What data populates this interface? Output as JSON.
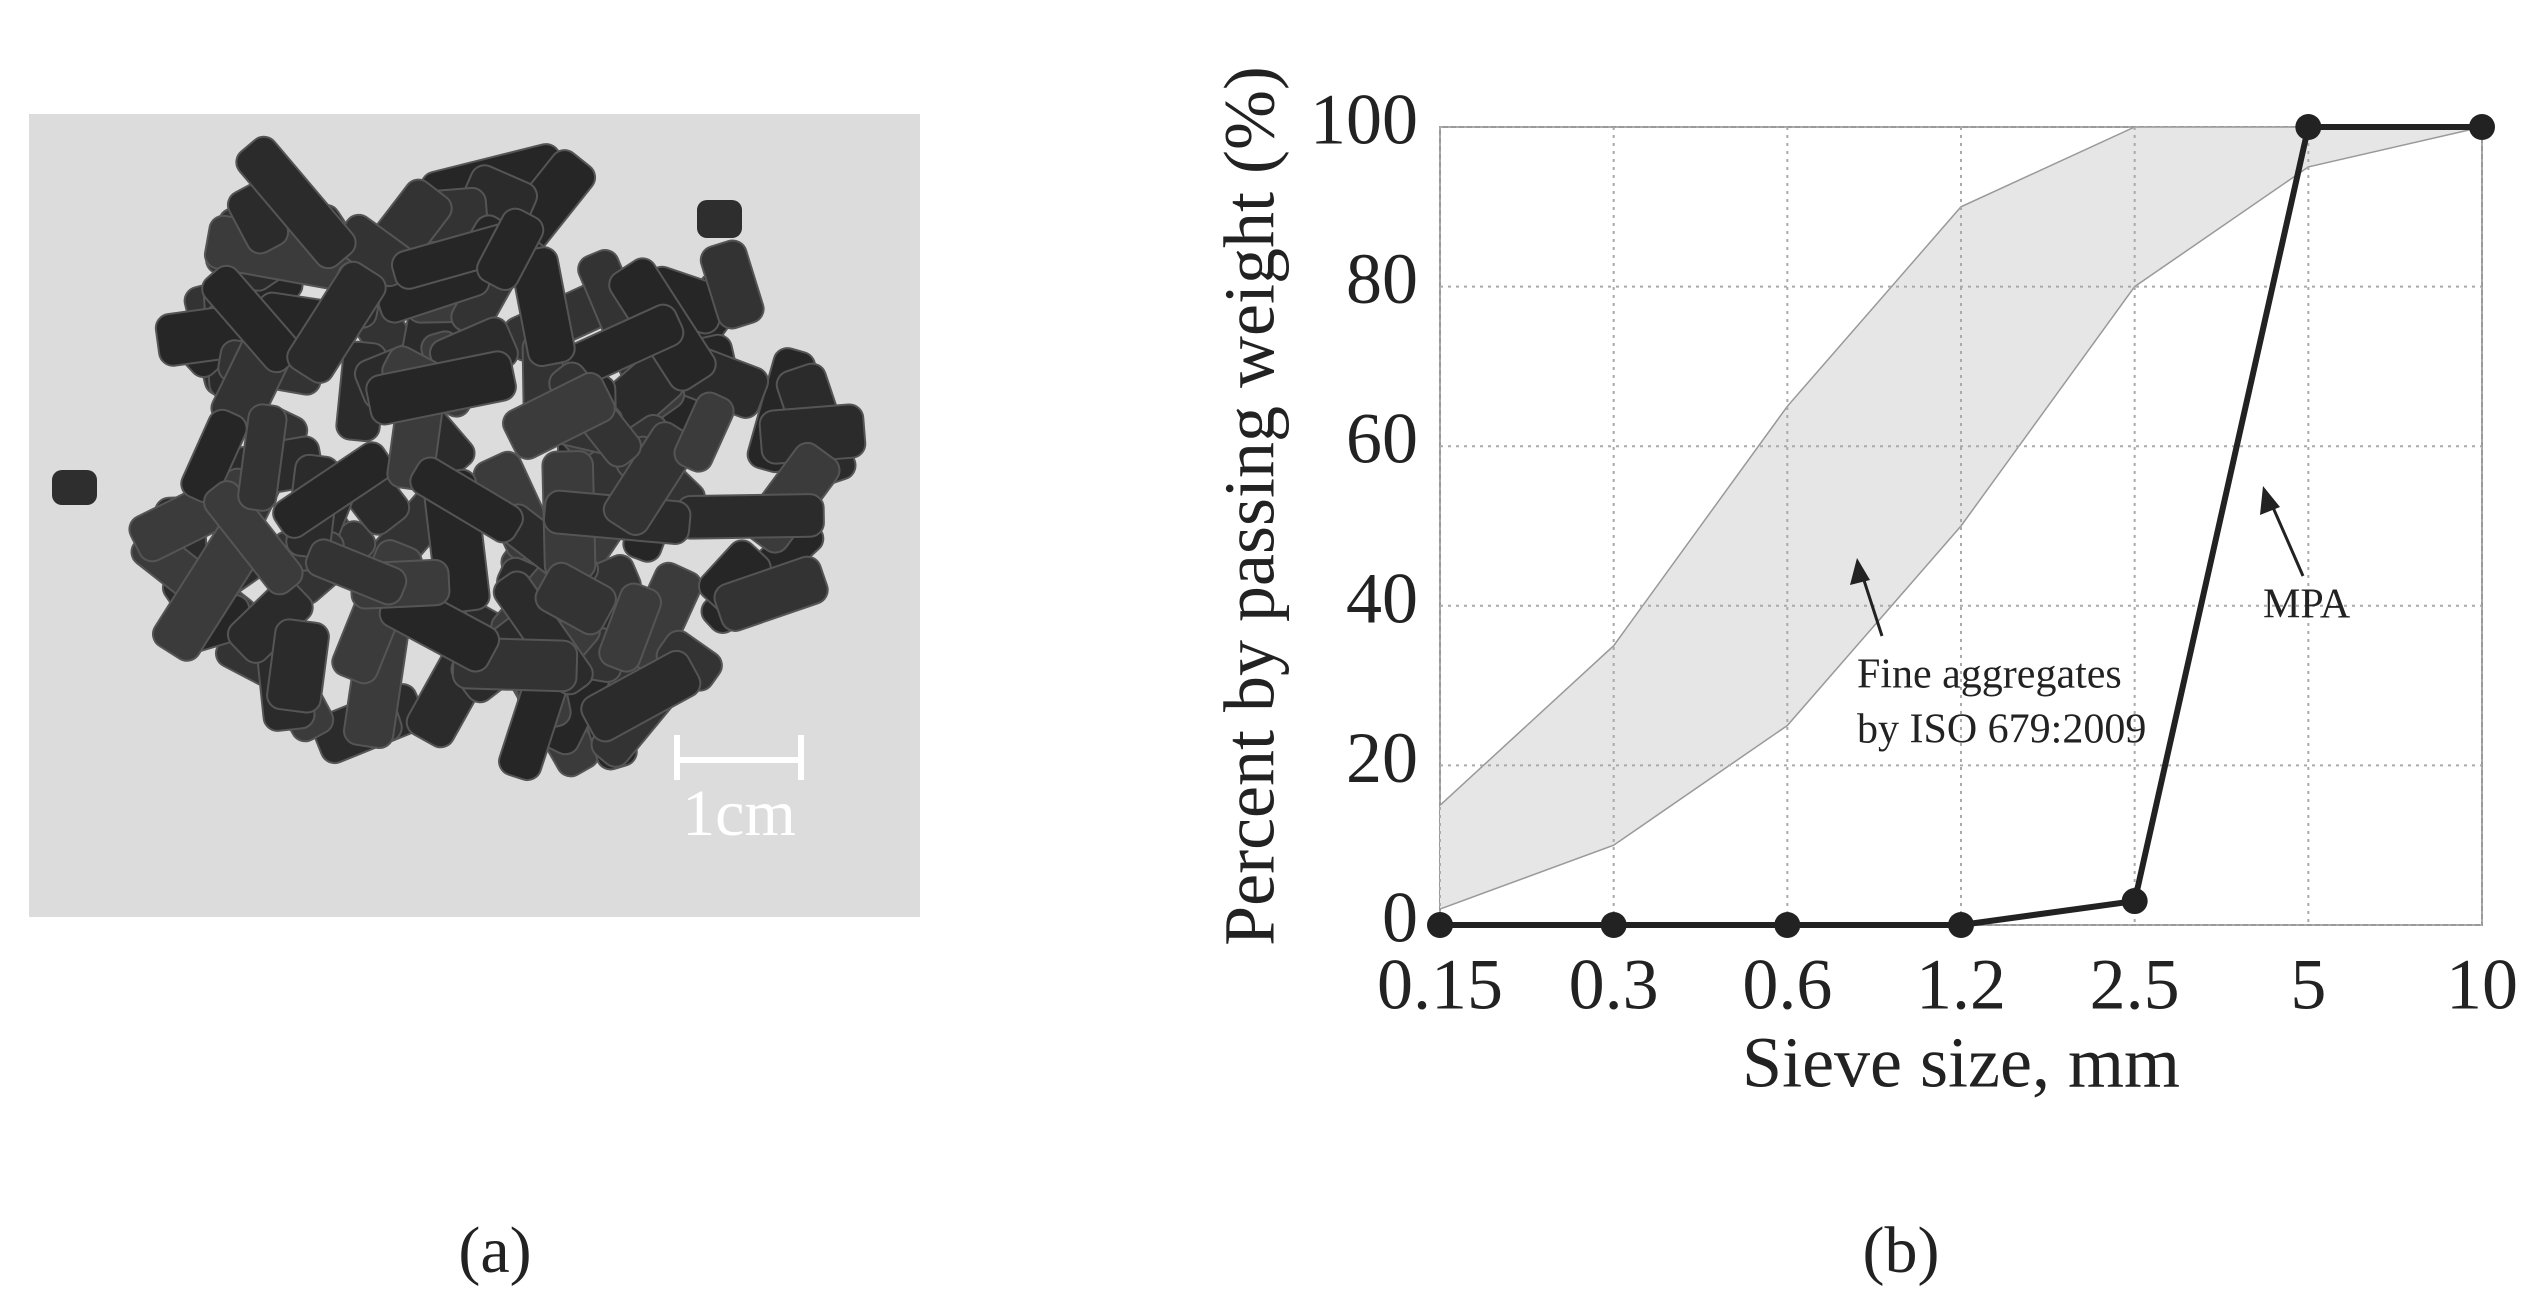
{
  "chart_data": {
    "type": "line",
    "categories": [
      "0.15",
      "0.3",
      "0.6",
      "1.2",
      "2.5",
      "5",
      "10"
    ],
    "series": [
      {
        "name": "MPA",
        "color": "#222222",
        "values": [
          0,
          0,
          0,
          0,
          3,
          100,
          100
        ]
      }
    ],
    "band": {
      "color": "#e6e6e6",
      "upper": [
        15,
        35,
        65,
        90,
        100,
        100,
        100
      ],
      "lower": [
        2,
        10,
        25,
        50,
        80,
        95,
        100
      ]
    },
    "ylim": [
      0,
      100
    ],
    "yticks": [
      0,
      20,
      40,
      60,
      80,
      100
    ],
    "grid": true,
    "xlabel": "Sieve size, mm",
    "ylabel": "Percent by passing weight (%)",
    "annotations": [
      "Fine aggregates",
      "by ISO 679:2009"
    ]
  },
  "photo": {
    "scale_label": "1cm"
  },
  "captions": [
    "(a)",
    "(b)"
  ]
}
